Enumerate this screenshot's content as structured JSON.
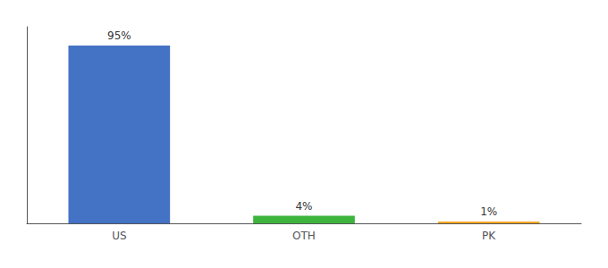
{
  "chart_data": {
    "type": "bar",
    "categories": [
      "US",
      "OTH",
      "PK"
    ],
    "values": [
      95,
      4,
      1
    ],
    "value_labels": [
      "95%",
      "4%",
      "1%"
    ],
    "colors": [
      "#4472c4",
      "#3db53d",
      "#f5a623"
    ],
    "ylim": [
      0,
      105
    ],
    "data_labels": true,
    "tick_labels": "x",
    "grid": false
  }
}
